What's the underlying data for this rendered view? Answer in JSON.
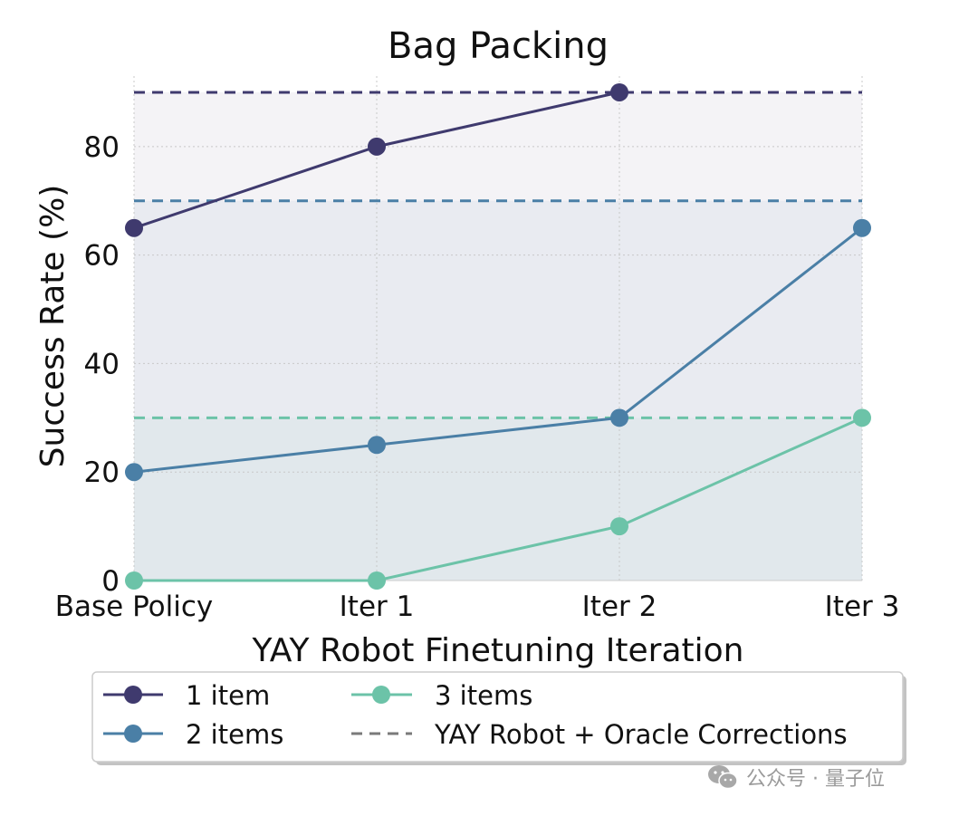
{
  "chart_data": {
    "type": "line",
    "title": "Bag Packing",
    "xlabel": "YAY Robot Finetuning Iteration",
    "ylabel": "Success Rate (%)",
    "categories": [
      "Base Policy",
      "Iter 1",
      "Iter 2",
      "Iter 3"
    ],
    "ylim": [
      0,
      93
    ],
    "yticks": [
      0,
      20,
      40,
      60,
      80
    ],
    "grid": true,
    "series": [
      {
        "name": "1 item",
        "values": [
          65,
          80,
          90,
          null
        ],
        "oracle": 90,
        "color": "#3f3a6e"
      },
      {
        "name": "2 items",
        "values": [
          20,
          25,
          30,
          65
        ],
        "oracle": 70,
        "color": "#4a7fa6"
      },
      {
        "name": "3 items",
        "values": [
          0,
          0,
          10,
          30
        ],
        "oracle": 30,
        "color": "#6cc3a8"
      }
    ],
    "legend": {
      "placement": "bottom",
      "oracle_label": "YAY Robot + Oracle Corrections",
      "oracle_color": "#7a7a7a"
    }
  },
  "watermark": {
    "text": "公众号 · 量子位",
    "icon": "wechat-icon"
  }
}
